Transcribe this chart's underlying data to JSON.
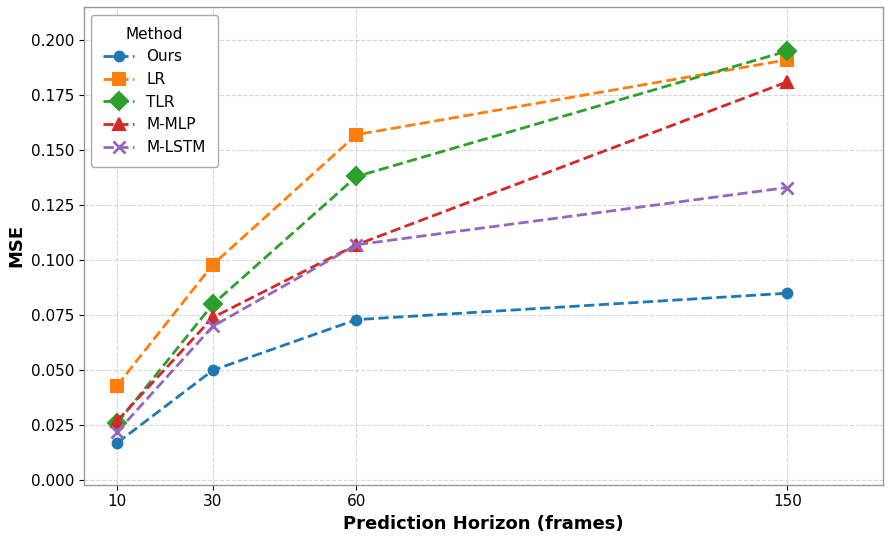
{
  "x": [
    10,
    30,
    60,
    150
  ],
  "series": [
    {
      "label": "Ours",
      "values": [
        0.017,
        0.05,
        0.073,
        0.085
      ],
      "color": "#1f77b4",
      "marker": "o",
      "markersize": 7,
      "markeredgewidth": 1.5
    },
    {
      "label": "LR",
      "values": [
        0.043,
        0.098,
        0.157,
        0.191
      ],
      "color": "#ff7f0e",
      "marker": "s",
      "markersize": 8,
      "markeredgewidth": 1.5
    },
    {
      "label": "TLR",
      "values": [
        0.026,
        0.08,
        0.138,
        0.195
      ],
      "color": "#2ca02c",
      "marker": "D",
      "markersize": 9,
      "markeredgewidth": 1.5
    },
    {
      "label": "M-MLP",
      "values": [
        0.027,
        0.074,
        0.107,
        0.181
      ],
      "color": "#d62728",
      "marker": "^",
      "markersize": 9,
      "markeredgewidth": 1.5
    },
    {
      "label": "M-LSTM",
      "values": [
        0.022,
        0.07,
        0.107,
        0.133
      ],
      "color": "#9467bd",
      "marker": "x",
      "markersize": 9,
      "markeredgewidth": 2.0
    }
  ],
  "xlabel": "Prediction Horizon (frames)",
  "ylabel": "MSE",
  "legend_title": "Method",
  "legend_loc": "upper left",
  "xlim": [
    3,
    170
  ],
  "ylim": [
    -0.002,
    0.215
  ],
  "xticks": [
    10,
    30,
    60,
    150
  ],
  "yticks": [
    0.0,
    0.025,
    0.05,
    0.075,
    0.1,
    0.125,
    0.15,
    0.175,
    0.2
  ],
  "grid": true,
  "background_color": "#ffffff",
  "plot_bg_color": "#ffffff",
  "label_fontsize": 13,
  "tick_fontsize": 11,
  "legend_fontsize": 11,
  "linewidth": 2.0,
  "grid_color": "#cccccc",
  "grid_alpha": 0.8
}
